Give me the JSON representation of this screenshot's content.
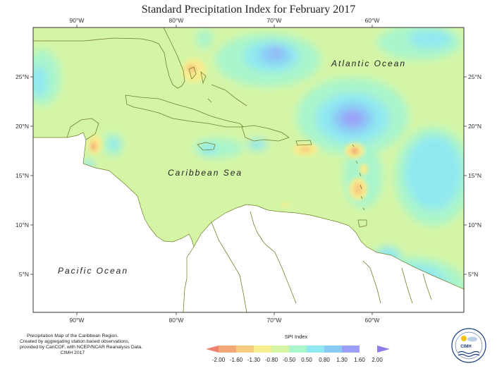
{
  "title": "Standard Precipitation Index for February 2017",
  "axes": {
    "lon_labels": [
      "90°W",
      "80°W",
      "70°W",
      "60°W"
    ],
    "lat_labels": [
      "25°N",
      "20°N",
      "15°N",
      "10°N",
      "5°N"
    ]
  },
  "map_labels": {
    "atlantic": "Atlantic Ocean",
    "caribbean": "Caribbean Sea",
    "pacific": "Pacific Ocean"
  },
  "credit_lines": [
    "Precipitation Map of the Caribbean Region.",
    "Created by aggregating station based observations,",
    "provided by CariCOF, with NCEP/NCAR Reanalysis Data.",
    "CIMH 2017"
  ],
  "legend": {
    "title": "SPI Index",
    "colors": [
      "#ef7f6e",
      "#f2a877",
      "#f6cc80",
      "#f6ed8f",
      "#d5f5a6",
      "#aaf5cc",
      "#90e8f0",
      "#8bc9f6",
      "#9d9ef8",
      "#8c7de9"
    ],
    "ticks": [
      "-2.00",
      "-1.60",
      "-1.30",
      "-0.80",
      "-0.50",
      "0.50",
      "0.80",
      "1.30",
      "1.60",
      "2.00"
    ]
  },
  "logo": {
    "text": "CIMH"
  }
}
